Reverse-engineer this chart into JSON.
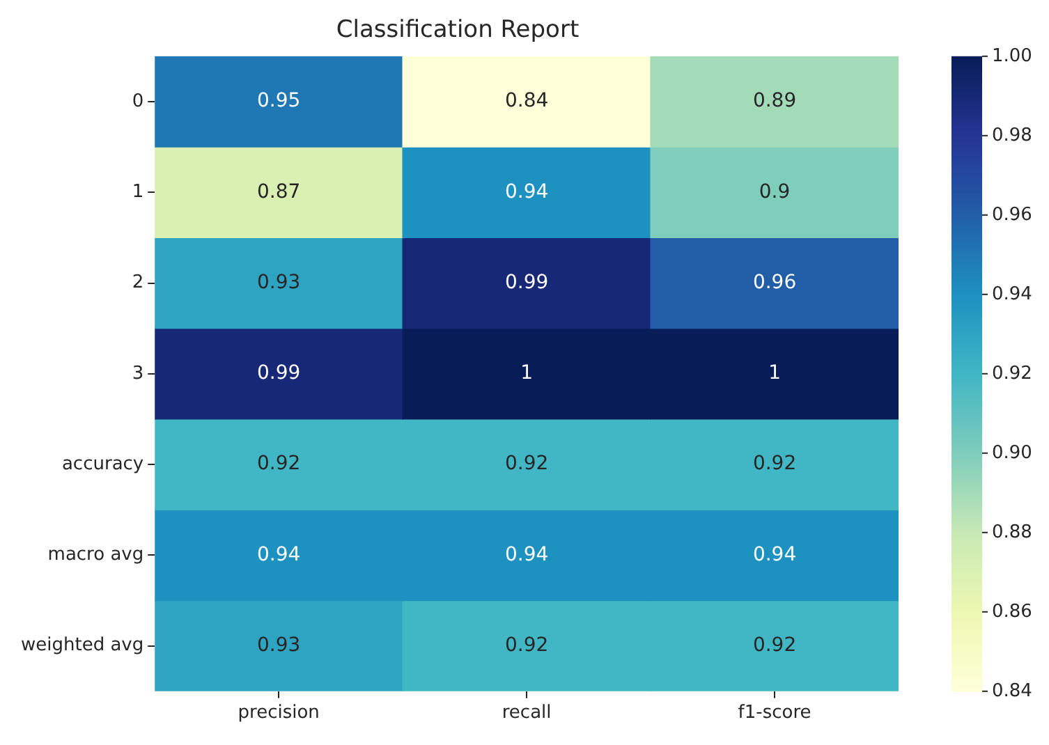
{
  "chart_data": {
    "type": "heatmap",
    "title": "Classification Report",
    "categories": [
      "precision",
      "recall",
      "f1-score"
    ],
    "y_categories": [
      "0",
      "1",
      "2",
      "3",
      "accuracy",
      "macro avg",
      "weighted avg"
    ],
    "cells": [
      [
        0.95,
        0.84,
        0.89
      ],
      [
        0.87,
        0.94,
        0.9
      ],
      [
        0.93,
        0.99,
        0.96
      ],
      [
        0.99,
        1,
        1
      ],
      [
        0.92,
        0.92,
        0.92
      ],
      [
        0.94,
        0.94,
        0.94
      ],
      [
        0.93,
        0.92,
        0.92
      ]
    ],
    "clim": [
      0.84,
      1.0
    ],
    "cticks": [
      {
        "value": 0.84,
        "label": "0.84"
      },
      {
        "value": 0.86,
        "label": "0.86"
      },
      {
        "value": 0.88,
        "label": "0.88"
      },
      {
        "value": 0.9,
        "label": "0.90"
      },
      {
        "value": 0.92,
        "label": "0.92"
      },
      {
        "value": 0.94,
        "label": "0.94"
      },
      {
        "value": 0.96,
        "label": "0.96"
      },
      {
        "value": 0.98,
        "label": "0.98"
      },
      {
        "value": 1,
        "label": "1.00"
      }
    ],
    "data_labels": true,
    "grid": false,
    "legend": false
  }
}
